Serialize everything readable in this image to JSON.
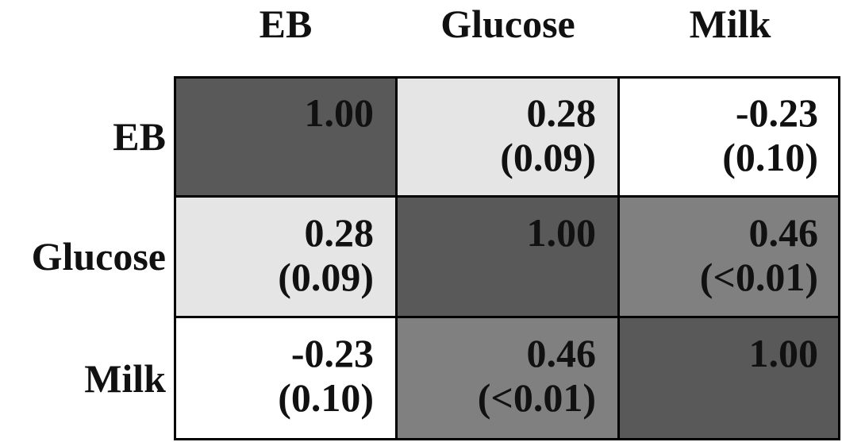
{
  "chart_data": {
    "type": "heatmap",
    "columns": [
      "EB",
      "Glucose",
      "Milk"
    ],
    "rows": [
      "EB",
      "Glucose",
      "Milk"
    ],
    "cells": [
      [
        {
          "value": "1.00",
          "p": "",
          "color": "#595959"
        },
        {
          "value": "0.28",
          "p": "(0.09)",
          "color": "#e5e5e5"
        },
        {
          "value": "-0.23",
          "p": "(0.10)",
          "color": "#ffffff"
        }
      ],
      [
        {
          "value": "0.28",
          "p": "(0.09)",
          "color": "#e5e5e5"
        },
        {
          "value": "1.00",
          "p": "",
          "color": "#595959"
        },
        {
          "value": "0.46",
          "p": "(<0.01)",
          "color": "#808080"
        }
      ],
      [
        {
          "value": "-0.23",
          "p": "(0.10)",
          "color": "#ffffff"
        },
        {
          "value": "0.46",
          "p": "(<0.01)",
          "color": "#808080"
        },
        {
          "value": "1.00",
          "p": "",
          "color": "#595959"
        }
      ]
    ]
  }
}
